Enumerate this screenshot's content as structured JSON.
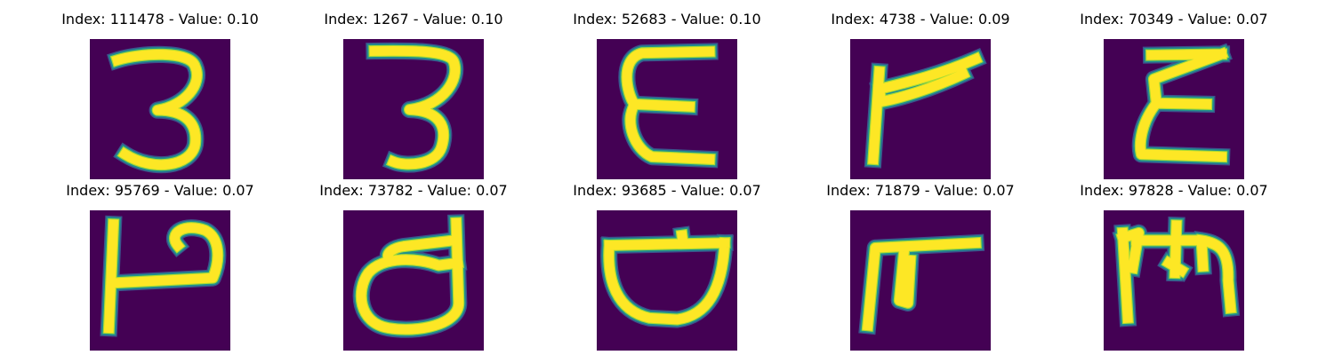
{
  "colors": {
    "background": "#440154",
    "stroke_core": "#fde725",
    "stroke_mid": "#a8db34",
    "stroke_edge": "#21918c",
    "stroke_halo": "#3b528b"
  },
  "panels": [
    {
      "title": "Index: 111478 - Value: 0.10",
      "glyph": "3"
    },
    {
      "title": "Index: 1267 - Value: 0.10",
      "glyph": "3"
    },
    {
      "title": "Index: 52683 - Value: 0.10",
      "glyph": "E"
    },
    {
      "title": "Index: 4738 - Value: 0.09",
      "glyph": "r"
    },
    {
      "title": "Index: 70349 - Value: 0.07",
      "glyph": "E"
    },
    {
      "title": "Index: 95769 - Value: 0.07",
      "glyph": "P"
    },
    {
      "title": "Index: 73782 - Value: 0.07",
      "glyph": "d"
    },
    {
      "title": "Index: 93685 - Value: 0.07",
      "glyph": "D"
    },
    {
      "title": "Index: 71879 - Value: 0.07",
      "glyph": "n"
    },
    {
      "title": "Index: 97828 - Value: 0.07",
      "glyph": "m"
    }
  ]
}
